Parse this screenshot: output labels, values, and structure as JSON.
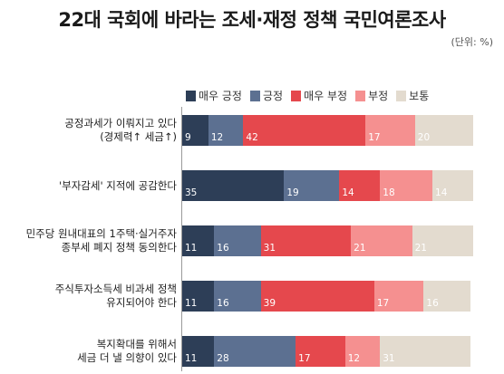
{
  "chart_data": {
    "type": "bar",
    "orientation": "horizontal",
    "stacked": true,
    "title": "22대 국회에 바라는 조세·재정 정책 국민여론조사",
    "unit": "(단위: %)",
    "categories": [
      [
        "공정과세가 이뤄지고 있다",
        "(경제력↑ 세금↑)"
      ],
      [
        "'부자감세' 지적에 공감한다"
      ],
      [
        "민주당 원내대표의 1주택·실거주자",
        "종부세 폐지 정책 동의한다"
      ],
      [
        "주식투자소득세 비과세 정책",
        "유지되어야 한다"
      ],
      [
        "복지확대를 위해서",
        "세금 더 낼 의향이 있다"
      ]
    ],
    "series": [
      {
        "name": "매우 긍정",
        "color": "#2d3e57",
        "values": [
          9,
          35,
          11,
          11,
          11
        ]
      },
      {
        "name": "긍정",
        "color": "#5c7091",
        "values": [
          12,
          19,
          16,
          16,
          28
        ]
      },
      {
        "name": "매우 부정",
        "color": "#e5484d",
        "values": [
          42,
          14,
          31,
          39,
          17
        ]
      },
      {
        "name": "부정",
        "color": "#f59090",
        "values": [
          17,
          18,
          21,
          17,
          12
        ]
      },
      {
        "name": "보통",
        "color": "#e3dbcf",
        "values": [
          20,
          14,
          21,
          16,
          31
        ]
      }
    ],
    "legend_position": "top",
    "grid": false
  }
}
